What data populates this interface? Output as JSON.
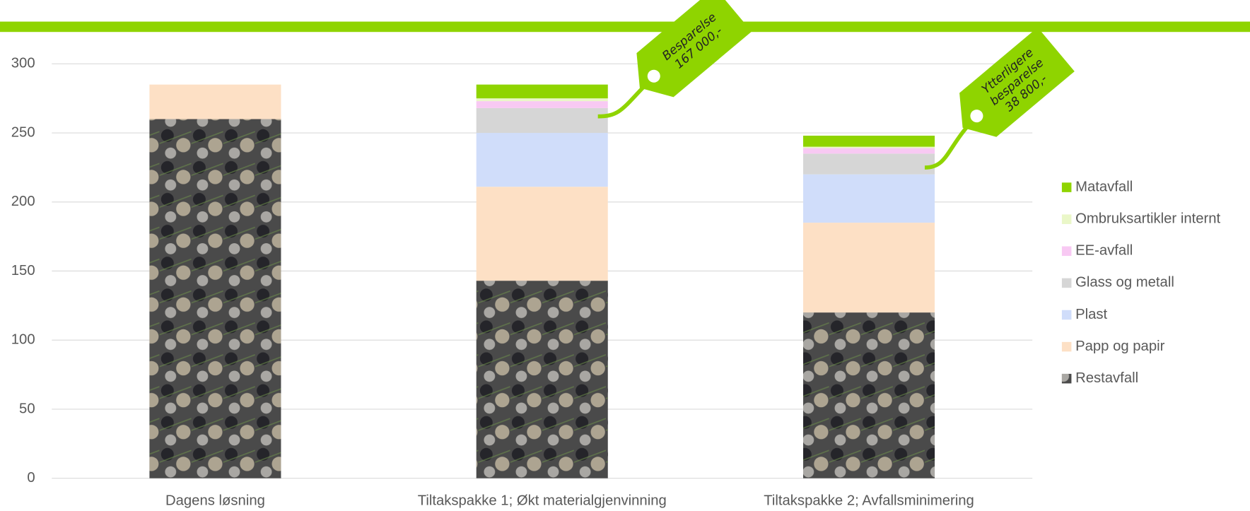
{
  "chart_data": {
    "type": "stacked_bar",
    "categories": [
      "Dagens løsning",
      "Tiltakspakke 1; Økt materialgjenvinning",
      "Tiltakspakke 2; Avfallsminimering"
    ],
    "series": [
      {
        "name": "Restavfall",
        "color": "#4a4a4a",
        "values": [
          260,
          143,
          120
        ]
      },
      {
        "name": "Papp og papir",
        "color": "#fde0c5",
        "values": [
          25,
          68,
          65
        ]
      },
      {
        "name": "Plast",
        "color": "#d0ddfa",
        "values": [
          0,
          39,
          35
        ]
      },
      {
        "name": "Glass og metall",
        "color": "#d6d6d6",
        "values": [
          0,
          18,
          15
        ]
      },
      {
        "name": "EE-avfall",
        "color": "#f8c9f3",
        "values": [
          0,
          5,
          4
        ]
      },
      {
        "name": "Ombruksartikler internt",
        "color": "#eaf7c8",
        "values": [
          0,
          2,
          1
        ]
      },
      {
        "name": "Matavfall",
        "color": "#8fd400",
        "values": [
          0,
          10,
          8
        ]
      }
    ],
    "ylim": [
      0,
      300
    ],
    "yticks": [
      0,
      50,
      100,
      150,
      200,
      250,
      300
    ],
    "grid": true,
    "annotations": [
      {
        "lines": [
          "Besparelse",
          "167 000,-"
        ]
      },
      {
        "lines": [
          "Ytterligere",
          "besparelse",
          "38 800,-"
        ]
      }
    ]
  }
}
